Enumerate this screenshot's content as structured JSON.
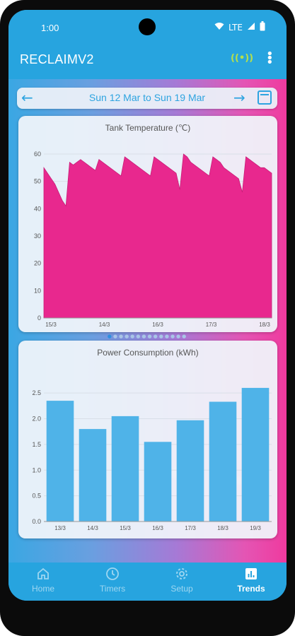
{
  "status": {
    "time": "1:00",
    "network": "LTE"
  },
  "appbar": {
    "title": "RECLAIMV2",
    "signal_icon": "broadcast-signal-icon",
    "menu_icon": "more-vert-icon"
  },
  "datebar": {
    "range": "Sun 12 Mar to Sun 19 Mar"
  },
  "charts": {
    "temp_title": "Tank Temperature (℃)",
    "power_title": "Power Consumption (kWh)"
  },
  "chart_data": [
    {
      "type": "area",
      "title": "Tank Temperature (℃)",
      "ylim": [
        0,
        60
      ],
      "yticks": [
        0,
        10,
        20,
        30,
        40,
        50,
        60
      ],
      "xticks": [
        "15/3",
        "14/3",
        "16/3",
        "17/3",
        "18/3"
      ],
      "series": [
        {
          "color": "#e8288e",
          "values": [
            55,
            53,
            51,
            49,
            46,
            43,
            41,
            57,
            56,
            57,
            58,
            57,
            56,
            55,
            54,
            58,
            57,
            56,
            55,
            54,
            53,
            52,
            59,
            58,
            57,
            56,
            55,
            54,
            53,
            52,
            59,
            58,
            57,
            56,
            55,
            54,
            53,
            47,
            60,
            59,
            57,
            56,
            55,
            54,
            53,
            52,
            59,
            58,
            57,
            55,
            54,
            53,
            52,
            51,
            46,
            59,
            58,
            57,
            56,
            55,
            55,
            54,
            53
          ]
        }
      ]
    },
    {
      "type": "bar",
      "title": "Power Consumption (kWh)",
      "categories": [
        "13/3",
        "14/3",
        "15/3",
        "16/3",
        "17/3",
        "18/3",
        "19/3"
      ],
      "values": [
        2.35,
        1.8,
        2.05,
        1.55,
        1.97,
        2.33,
        2.6
      ],
      "ylim": [
        0,
        2.75
      ],
      "yticks": [
        "0.0",
        "0.5",
        "1.0",
        "1.5",
        "2.0",
        "2.5"
      ],
      "color": "#4fb3e8"
    }
  ],
  "pager": {
    "count": 14,
    "active": 0
  },
  "nav": [
    {
      "label": "Home",
      "icon": "home-icon",
      "active": false
    },
    {
      "label": "Timers",
      "icon": "clock-icon",
      "active": false
    },
    {
      "label": "Setup",
      "icon": "gear-icon",
      "active": false
    },
    {
      "label": "Trends",
      "icon": "chart-icon",
      "active": true
    }
  ]
}
